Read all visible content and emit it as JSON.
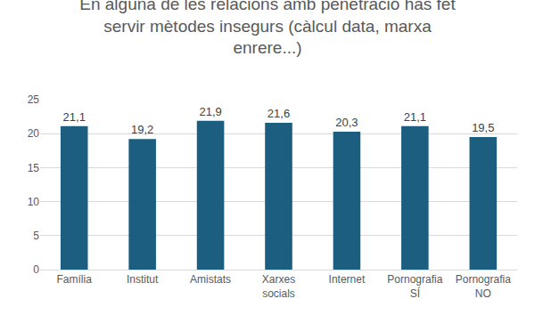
{
  "chart_data": {
    "type": "bar",
    "title": "En alguna de les relacions amb penetració has fet servir mètodes insegurs (càlcul data, marxa enrere...)",
    "categories": [
      "Família",
      "Institut",
      "Amistats",
      "Xarxes socials",
      "Internet",
      "Pornografia SÍ",
      "Pornografia NO"
    ],
    "values": [
      21.1,
      19.2,
      21.9,
      21.6,
      20.3,
      21.1,
      19.5
    ],
    "value_labels": [
      "21,1",
      "19,2",
      "21,9",
      "21,6",
      "20,3",
      "21,1",
      "19,5"
    ],
    "color": "#1b5e80",
    "ylim": [
      0,
      25
    ],
    "yticks": [
      0,
      5,
      10,
      15,
      20,
      25
    ],
    "grid": true,
    "data_labels": true
  }
}
